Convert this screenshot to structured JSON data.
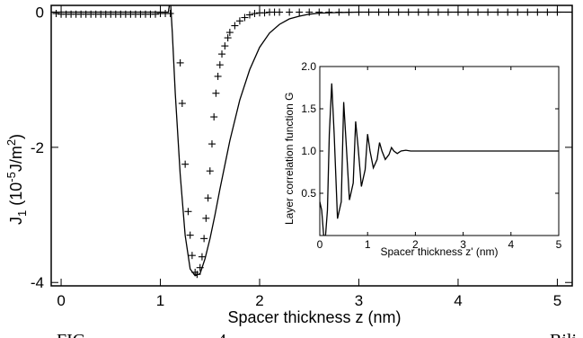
{
  "chart_data": [
    {
      "type": "line",
      "xlabel": "Spacer thickness z (nm)",
      "ylabel_main": "J",
      "ylabel_sub": "1",
      "ylabel_pre": "(10",
      "ylabel_sup": "-5",
      "ylabel_post": "J/m",
      "ylabel_sup2": "2",
      "ylabel_close": ")",
      "xlim": [
        -0.1,
        5.15
      ],
      "ylim": [
        -4.05,
        0.1
      ],
      "x_ticks": [
        0,
        1,
        2,
        3,
        4,
        5
      ],
      "x_tick_labels": [
        "0",
        "1",
        "2",
        "3",
        "4",
        "5"
      ],
      "y_ticks": [
        0,
        -2,
        -4
      ],
      "y_tick_labels": [
        "0",
        "-2",
        "-4"
      ],
      "grid": false,
      "series": [
        {
          "style": "solid-line",
          "x": [
            -0.1,
            1.0,
            1.08,
            1.1,
            1.12,
            1.15,
            1.2,
            1.25,
            1.3,
            1.35,
            1.4,
            1.45,
            1.5,
            1.55,
            1.6,
            1.7,
            1.8,
            1.9,
            2.0,
            2.1,
            2.2,
            2.3,
            2.4,
            2.5,
            2.6,
            2.8,
            3.0,
            3.5,
            4.0,
            4.5,
            5.0,
            5.15
          ],
          "y": [
            0.0,
            0.0,
            0.0,
            0.2,
            -0.3,
            -1.2,
            -2.4,
            -3.3,
            -3.8,
            -3.9,
            -3.87,
            -3.65,
            -3.35,
            -3.0,
            -2.62,
            -1.9,
            -1.3,
            -0.85,
            -0.52,
            -0.31,
            -0.18,
            -0.1,
            -0.06,
            -0.03,
            -0.015,
            -0.005,
            0.0,
            0.0,
            0.0,
            0.0,
            0.0,
            0.0
          ]
        },
        {
          "style": "plus-markers",
          "x": [
            -0.05,
            0.0,
            0.05,
            0.1,
            0.15,
            0.2,
            0.25,
            0.3,
            0.35,
            0.4,
            0.45,
            0.5,
            0.55,
            0.6,
            0.65,
            0.7,
            0.75,
            0.8,
            0.85,
            0.9,
            0.95,
            1.0,
            1.05,
            1.1,
            1.2,
            1.22,
            1.25,
            1.28,
            1.3,
            1.32,
            1.35,
            1.37,
            1.4,
            1.42,
            1.44,
            1.46,
            1.48,
            1.5,
            1.52,
            1.54,
            1.56,
            1.58,
            1.6,
            1.62,
            1.65,
            1.68,
            1.7,
            1.75,
            1.8,
            1.85,
            1.9,
            1.95,
            2.0,
            2.05,
            2.1,
            2.15,
            2.2,
            2.3,
            2.4,
            2.5,
            2.6,
            2.7,
            2.8,
            2.9,
            3.0,
            3.1,
            3.2,
            3.3,
            3.4,
            3.5,
            3.6,
            3.7,
            3.8,
            3.9,
            4.0,
            4.1,
            4.2,
            4.3,
            4.4,
            4.5,
            4.6,
            4.7,
            4.8,
            4.9,
            5.0
          ],
          "y": [
            -0.02,
            -0.03,
            -0.03,
            -0.03,
            -0.03,
            -0.03,
            -0.03,
            -0.03,
            -0.03,
            -0.03,
            -0.03,
            -0.03,
            -0.03,
            -0.03,
            -0.03,
            -0.03,
            -0.03,
            -0.03,
            -0.03,
            -0.03,
            -0.03,
            -0.02,
            -0.02,
            -0.02,
            -0.75,
            -1.35,
            -2.25,
            -2.95,
            -3.3,
            -3.6,
            -3.85,
            -3.88,
            -3.78,
            -3.62,
            -3.35,
            -3.05,
            -2.75,
            -2.35,
            -1.95,
            -1.55,
            -1.2,
            -0.95,
            -0.78,
            -0.62,
            -0.5,
            -0.38,
            -0.3,
            -0.2,
            -0.13,
            -0.08,
            -0.04,
            -0.02,
            -0.01,
            -0.01,
            0.0,
            0.0,
            0.0,
            0.0,
            0.0,
            0.0,
            0.0,
            0.0,
            0.0,
            0.0,
            0.0,
            0.0,
            0.0,
            0.0,
            0.0,
            0.0,
            0.0,
            0.0,
            0.0,
            0.0,
            0.0,
            0.0,
            0.0,
            0.0,
            0.0,
            0.0,
            0.0,
            0.0,
            0.0,
            0.0,
            0.0
          ]
        }
      ]
    },
    {
      "type": "line",
      "xlabel": "Spacer thickness z' (nm)",
      "ylabel": "Layer correlation function G",
      "xlim": [
        0,
        5
      ],
      "ylim": [
        0,
        2.0
      ],
      "x_ticks": [
        0,
        1,
        2,
        3,
        4,
        5
      ],
      "x_tick_labels": [
        "0",
        "1",
        "2",
        "3",
        "4",
        "5"
      ],
      "y_ticks": [
        0.5,
        1.0,
        1.5,
        2.0
      ],
      "y_tick_labels": [
        "0.5",
        "1.0",
        "1.5",
        "2.0"
      ],
      "grid": false,
      "series": [
        {
          "style": "solid-line",
          "x": [
            0.0,
            0.04,
            0.08,
            0.12,
            0.16,
            0.2,
            0.25,
            0.3,
            0.37,
            0.45,
            0.5,
            0.55,
            0.62,
            0.7,
            0.75,
            0.8,
            0.87,
            0.95,
            1.0,
            1.05,
            1.12,
            1.2,
            1.25,
            1.3,
            1.37,
            1.45,
            1.5,
            1.55,
            1.62,
            1.7,
            1.8,
            1.9,
            2.0,
            2.2,
            3.0,
            4.0,
            5.0
          ],
          "y": [
            0.4,
            0.3,
            0.0,
            0.0,
            0.3,
            1.2,
            1.8,
            1.2,
            0.2,
            0.4,
            1.58,
            1.1,
            0.42,
            0.62,
            1.35,
            1.05,
            0.58,
            0.78,
            1.2,
            1.0,
            0.8,
            0.9,
            1.1,
            1.0,
            0.9,
            0.96,
            1.04,
            1.0,
            0.97,
            1.0,
            1.01,
            1.0,
            1.0,
            1.0,
            1.0,
            1.0,
            1.0
          ]
        }
      ]
    }
  ],
  "caption_fragment_left": "FIG",
  "caption_fragment_mid": "4",
  "caption_fragment_right": "Bili"
}
